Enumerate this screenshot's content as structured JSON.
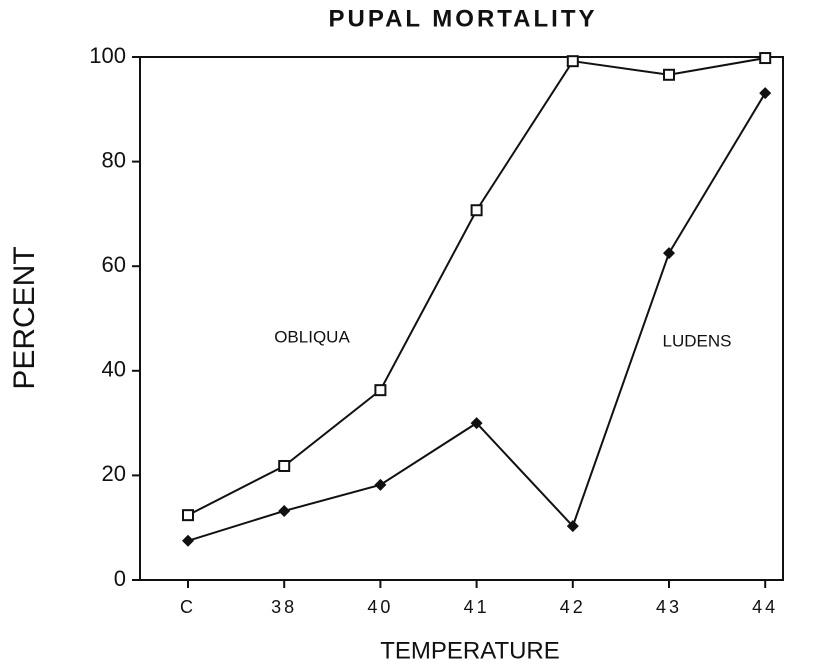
{
  "chart_data": {
    "type": "line",
    "title": "PUPAL MORTALITY",
    "x_label": "TEMPERATURE",
    "y_label": "PERCENT",
    "categories": [
      "C",
      "38",
      "40",
      "41",
      "42",
      "43",
      "44"
    ],
    "series": [
      {
        "name": "OBLIQUA",
        "color": "#111111",
        "marker": "open-square",
        "values": [
          12.4,
          21.8,
          36.3,
          70.7,
          99.2,
          96.6,
          99.8
        ]
      },
      {
        "name": "LUDENS",
        "color": "#111111",
        "marker": "filled-diamond",
        "values": [
          7.5,
          13.2,
          18.2,
          30,
          10.3,
          62.5,
          93.1
        ]
      }
    ],
    "ylim": [
      0,
      100
    ],
    "yticks": [
      0,
      20,
      40,
      60,
      80,
      100
    ],
    "grid": false
  }
}
